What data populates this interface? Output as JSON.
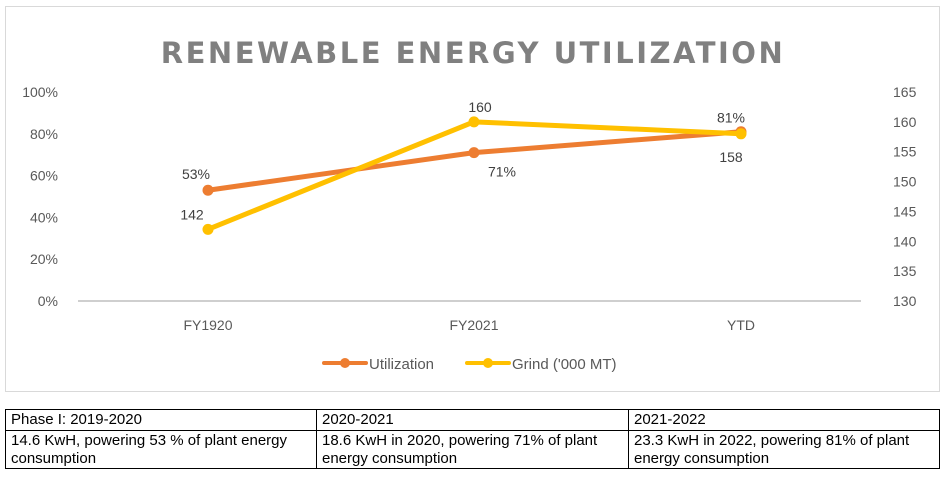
{
  "chart_data": {
    "type": "line",
    "title": "RENEWABLE ENERGY UTILIZATION",
    "categories": [
      "FY1920",
      "FY2021",
      "YTD"
    ],
    "series": [
      {
        "name": "Utilization",
        "axis": "left",
        "values": [
          53,
          71,
          81
        ],
        "labels": [
          "53%",
          "71%",
          "81%"
        ],
        "color": "#ed7d31"
      },
      {
        "name": "Grind ('000 MT)",
        "axis": "right",
        "values": [
          142,
          160,
          158
        ],
        "labels": [
          "142",
          "160",
          "158"
        ],
        "color": "#ffc000"
      }
    ],
    "left_axis": {
      "min": 0,
      "max": 100,
      "ticks": [
        0,
        20,
        40,
        60,
        80,
        100
      ],
      "tick_labels": [
        "0%",
        "20%",
        "40%",
        "60%",
        "80%",
        "100%"
      ]
    },
    "right_axis": {
      "min": 130,
      "max": 165,
      "ticks": [
        130,
        135,
        140,
        145,
        150,
        155,
        160,
        165
      ],
      "tick_labels": [
        "130",
        "135",
        "140",
        "145",
        "150",
        "155",
        "160",
        "165"
      ]
    },
    "grid": false,
    "legend": "bottom"
  },
  "table": {
    "headers": [
      "Phase I: 2019-2020",
      "2020-2021",
      "2021-2022"
    ],
    "rows": [
      [
        "14.6 KwH, powering 53 % of plant energy consumption",
        "18.6 KwH in 2020, powering 71% of plant energy consumption",
        "23.3 KwH in 2022, powering 81% of plant energy consumption"
      ]
    ]
  }
}
